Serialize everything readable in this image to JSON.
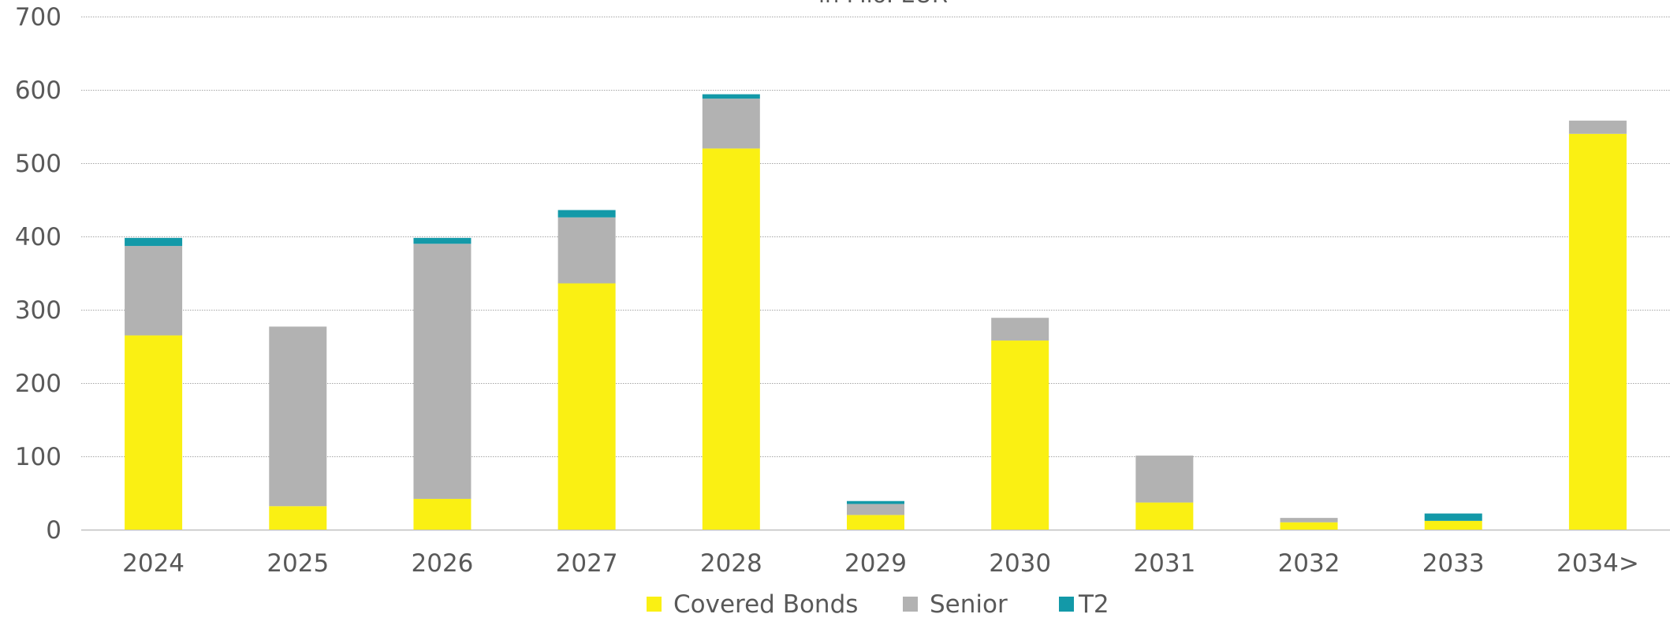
{
  "chart_data": {
    "type": "bar",
    "stacked": true,
    "title": "in Mio. EUR",
    "xlabel": "",
    "ylabel": "",
    "categories": [
      "2024",
      "2025",
      "2026",
      "2027",
      "2028",
      "2029",
      "2030",
      "2031",
      "2032",
      "2033",
      "2034>"
    ],
    "series": [
      {
        "name": "Covered Bonds",
        "color": "#FAF013",
        "values": [
          265,
          32,
          42,
          336,
          520,
          20,
          258,
          37,
          10,
          12,
          540
        ]
      },
      {
        "name": "Senior",
        "color": "#B2B2B2",
        "values": [
          122,
          245,
          348,
          90,
          68,
          15,
          31,
          64,
          6,
          0,
          18
        ]
      },
      {
        "name": "T2",
        "color": "#1399A8",
        "values": [
          11,
          0,
          8,
          10,
          6,
          4,
          0,
          0,
          0,
          10,
          0
        ]
      }
    ],
    "ylim": [
      0,
      700
    ],
    "yticks": [
      0,
      100,
      200,
      300,
      400,
      500,
      600,
      700
    ],
    "grid": true,
    "legend_position": "bottom"
  }
}
